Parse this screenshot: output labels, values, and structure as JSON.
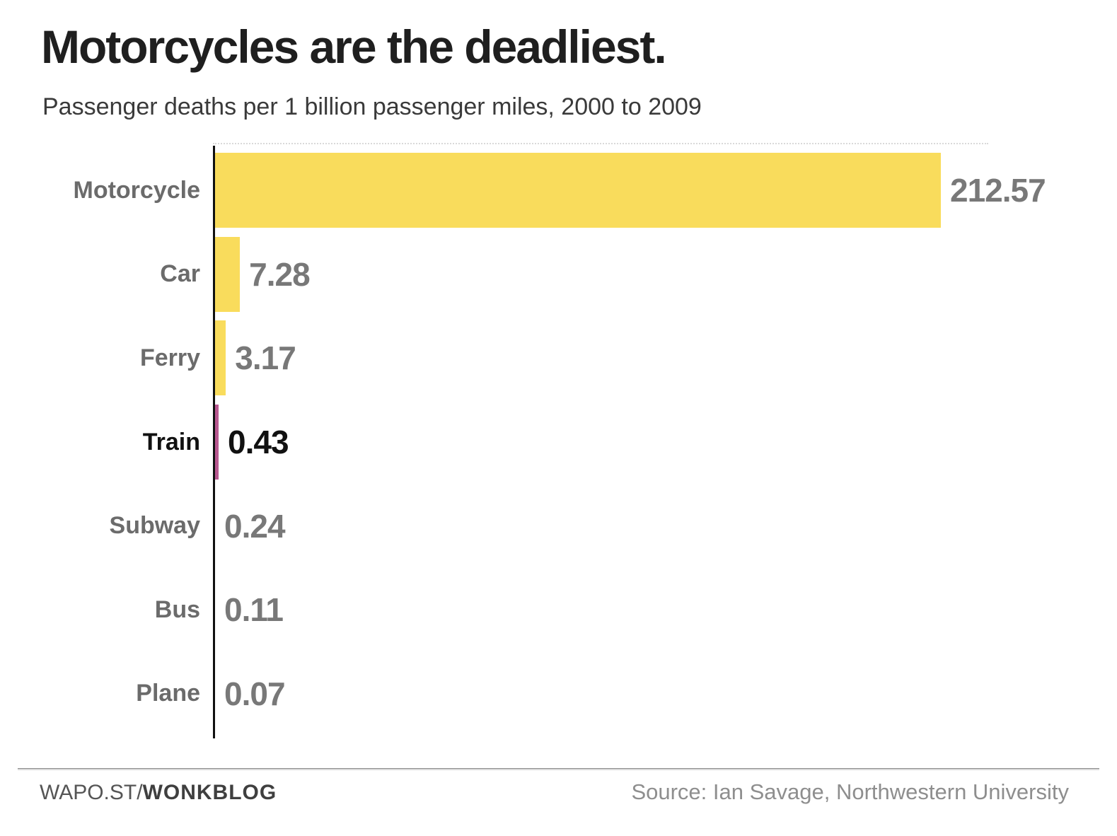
{
  "chart_data": {
    "type": "bar",
    "orientation": "horizontal",
    "title": "Motorcycles are the deadliest.",
    "subtitle": "Passenger deaths per 1 billion passenger miles, 2000 to 2009",
    "categories": [
      "Motorcycle",
      "Car",
      "Ferry",
      "Train",
      "Subway",
      "Bus",
      "Plane"
    ],
    "values": [
      212.57,
      7.28,
      3.17,
      0.43,
      0.24,
      0.11,
      0.07
    ],
    "value_labels": [
      "212.57",
      "7.28",
      "3.17",
      "0.43",
      "0.24",
      "0.11",
      "0.07"
    ],
    "highlight_category": "Train",
    "xlim": [
      0,
      212.57
    ],
    "grid": false,
    "legend": "none",
    "bar_color": "#F9DC5C",
    "highlight_bar_color": "#B85890",
    "label_color": "#6B6B6B",
    "value_color": "#787878",
    "highlight_text_color": "#111111",
    "axis_color": "#111111"
  },
  "footer": {
    "brand_prefix": "WAPO.ST/",
    "brand_bold": "WONKBLOG",
    "source": "Source: Ian Savage, Northwestern University"
  }
}
